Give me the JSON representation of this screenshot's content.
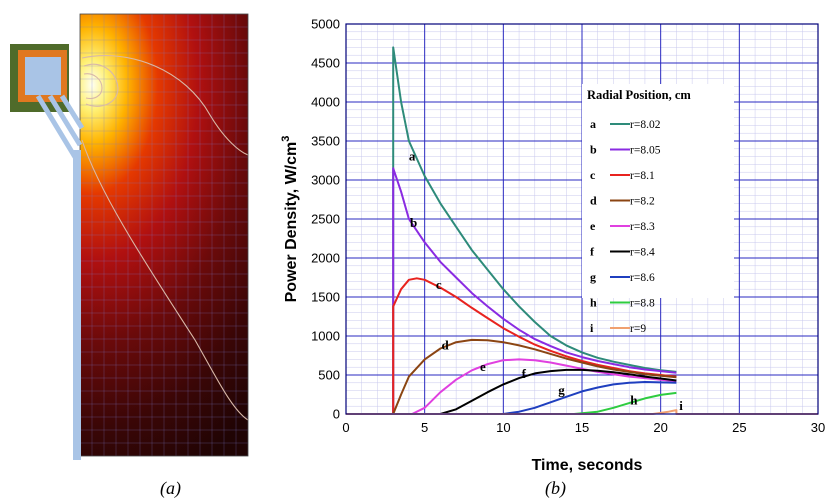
{
  "panel_a": {
    "caption": "(a)"
  },
  "panel_b": {
    "caption": "(b)"
  },
  "chart_data": {
    "type": "line",
    "title": "",
    "xlabel": "Time, seconds",
    "ylabel": "Power Density, W/cm",
    "ylabel_superscript": "3",
    "xlim": [
      0,
      30
    ],
    "ylim": [
      0,
      5000
    ],
    "xticks": [
      0,
      5,
      10,
      15,
      20,
      25,
      30
    ],
    "yticks": [
      0,
      500,
      1000,
      1500,
      2000,
      2500,
      3000,
      3500,
      4000,
      4500,
      5000
    ],
    "x_minor_step": 1,
    "y_minor_step": 100,
    "legend_title": "Radial Position, cm",
    "legend_position": "top-right",
    "series": [
      {
        "key": "a",
        "name": "r=8.02",
        "color": "#2E8B7A",
        "label_at": [
          4.2,
          3250
        ],
        "points": [
          [
            3,
            0
          ],
          [
            3,
            4700
          ],
          [
            3.5,
            4000
          ],
          [
            4,
            3500
          ],
          [
            5,
            3050
          ],
          [
            6,
            2700
          ],
          [
            7,
            2400
          ],
          [
            8,
            2100
          ],
          [
            9,
            1850
          ],
          [
            10,
            1600
          ],
          [
            11,
            1380
          ],
          [
            12,
            1180
          ],
          [
            13,
            1000
          ],
          [
            14,
            880
          ],
          [
            15,
            790
          ],
          [
            16,
            720
          ],
          [
            17,
            670
          ],
          [
            18,
            630
          ],
          [
            19,
            590
          ],
          [
            20,
            560
          ],
          [
            21,
            540
          ]
        ]
      },
      {
        "key": "b",
        "name": "r=8.05",
        "color": "#8A2BE2",
        "label_at": [
          4.3,
          2400
        ],
        "points": [
          [
            3,
            0
          ],
          [
            3,
            3150
          ],
          [
            3.5,
            2850
          ],
          [
            4,
            2500
          ],
          [
            5,
            2200
          ],
          [
            6,
            1950
          ],
          [
            7,
            1750
          ],
          [
            8,
            1550
          ],
          [
            9,
            1380
          ],
          [
            10,
            1220
          ],
          [
            11,
            1080
          ],
          [
            12,
            960
          ],
          [
            13,
            870
          ],
          [
            14,
            790
          ],
          [
            15,
            730
          ],
          [
            16,
            680
          ],
          [
            17,
            640
          ],
          [
            18,
            600
          ],
          [
            19,
            570
          ],
          [
            20,
            550
          ],
          [
            21,
            530
          ]
        ]
      },
      {
        "key": "c",
        "name": "r=8.1",
        "color": "#E8231F",
        "label_at": [
          5.9,
          1600
        ],
        "points": [
          [
            3,
            0
          ],
          [
            3,
            1380
          ],
          [
            3.5,
            1600
          ],
          [
            4,
            1720
          ],
          [
            4.5,
            1740
          ],
          [
            5,
            1720
          ],
          [
            6,
            1620
          ],
          [
            7,
            1500
          ],
          [
            8,
            1360
          ],
          [
            9,
            1230
          ],
          [
            10,
            1100
          ],
          [
            11,
            990
          ],
          [
            12,
            890
          ],
          [
            13,
            810
          ],
          [
            14,
            740
          ],
          [
            15,
            680
          ],
          [
            16,
            630
          ],
          [
            17,
            590
          ],
          [
            18,
            550
          ],
          [
            19,
            520
          ],
          [
            20,
            500
          ],
          [
            21,
            480
          ]
        ]
      },
      {
        "key": "d",
        "name": "r=8.2",
        "color": "#8B4513",
        "label_at": [
          6.3,
          830
        ],
        "points": [
          [
            3,
            0
          ],
          [
            3.5,
            250
          ],
          [
            4,
            480
          ],
          [
            5,
            700
          ],
          [
            6,
            840
          ],
          [
            7,
            920
          ],
          [
            8,
            950
          ],
          [
            9,
            945
          ],
          [
            10,
            920
          ],
          [
            11,
            880
          ],
          [
            12,
            830
          ],
          [
            13,
            770
          ],
          [
            14,
            710
          ],
          [
            15,
            660
          ],
          [
            16,
            610
          ],
          [
            17,
            570
          ],
          [
            18,
            540
          ],
          [
            19,
            510
          ],
          [
            20,
            490
          ],
          [
            21,
            470
          ]
        ]
      },
      {
        "key": "e",
        "name": "r=8.3",
        "color": "#E040E0",
        "label_at": [
          8.7,
          550
        ],
        "points": [
          [
            4.2,
            0
          ],
          [
            5,
            80
          ],
          [
            6,
            280
          ],
          [
            7,
            440
          ],
          [
            8,
            560
          ],
          [
            9,
            640
          ],
          [
            10,
            690
          ],
          [
            11,
            700
          ],
          [
            12,
            690
          ],
          [
            13,
            660
          ],
          [
            14,
            620
          ],
          [
            15,
            580
          ],
          [
            16,
            540
          ],
          [
            17,
            510
          ],
          [
            18,
            480
          ],
          [
            19,
            460
          ],
          [
            20,
            440
          ],
          [
            21,
            420
          ]
        ]
      },
      {
        "key": "f",
        "name": "r=8.4",
        "color": "#000000",
        "label_at": [
          11.3,
          460
        ],
        "points": [
          [
            6,
            0
          ],
          [
            7,
            60
          ],
          [
            8,
            170
          ],
          [
            9,
            280
          ],
          [
            10,
            380
          ],
          [
            11,
            460
          ],
          [
            12,
            520
          ],
          [
            13,
            550
          ],
          [
            14,
            565
          ],
          [
            15,
            565
          ],
          [
            16,
            555
          ],
          [
            17,
            535
          ],
          [
            18,
            510
          ],
          [
            19,
            480
          ],
          [
            20,
            455
          ],
          [
            21,
            430
          ]
        ]
      },
      {
        "key": "g",
        "name": "r=8.6",
        "color": "#1F3FBF",
        "label_at": [
          13.7,
          250
        ],
        "points": [
          [
            10,
            0
          ],
          [
            11,
            30
          ],
          [
            12,
            80
          ],
          [
            13,
            150
          ],
          [
            14,
            220
          ],
          [
            15,
            290
          ],
          [
            16,
            340
          ],
          [
            17,
            380
          ],
          [
            18,
            400
          ],
          [
            19,
            410
          ],
          [
            20,
            405
          ],
          [
            21,
            400
          ]
        ]
      },
      {
        "key": "h",
        "name": "r=8.8",
        "color": "#2ECC40",
        "label_at": [
          18.3,
          120
        ],
        "points": [
          [
            14.5,
            0
          ],
          [
            16,
            30
          ],
          [
            17,
            80
          ],
          [
            18,
            140
          ],
          [
            19,
            200
          ],
          [
            20,
            245
          ],
          [
            21,
            270
          ]
        ]
      },
      {
        "key": "i",
        "name": "r=9",
        "color": "#F0A070",
        "label_at": [
          21.3,
          50
        ],
        "points": [
          [
            0,
            0
          ],
          [
            19.5,
            0
          ],
          [
            20.5,
            30
          ],
          [
            21,
            50
          ],
          [
            21,
            0
          ],
          [
            30,
            0
          ]
        ]
      }
    ]
  }
}
